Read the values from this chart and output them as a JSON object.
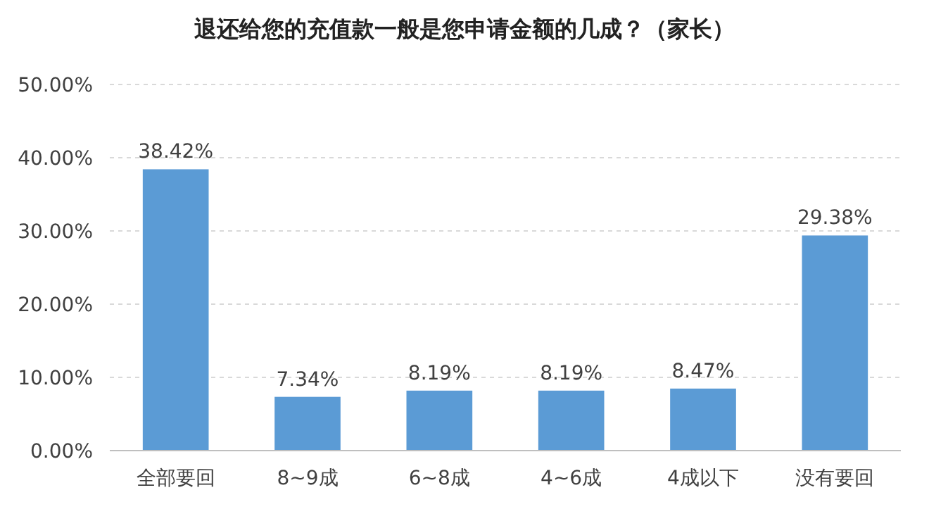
{
  "chart_data": {
    "type": "bar",
    "title": "退还给您的充值款一般是您申请金额的几成？（家长）",
    "categories": [
      "全部要回",
      "8~9成",
      "6~8成",
      "4~6成",
      "4成以下",
      "没有要回"
    ],
    "values": [
      38.42,
      7.34,
      8.19,
      8.19,
      8.47,
      29.38
    ],
    "color": "#5b9bd5",
    "value_labels": [
      "38.42%",
      "7.34%",
      "8.19%",
      "8.19%",
      "8.47%",
      "29.38%"
    ],
    "ylim": [
      0,
      50
    ],
    "yticks": [
      {
        "value": 0,
        "label": "0.00%"
      },
      {
        "value": 10,
        "label": "10.00%"
      },
      {
        "value": 20,
        "label": "20.00%"
      },
      {
        "value": 30,
        "label": "30.00%"
      },
      {
        "value": 40,
        "label": "40.00%"
      },
      {
        "value": 50,
        "label": "50.00%"
      }
    ],
    "grid": "y"
  }
}
